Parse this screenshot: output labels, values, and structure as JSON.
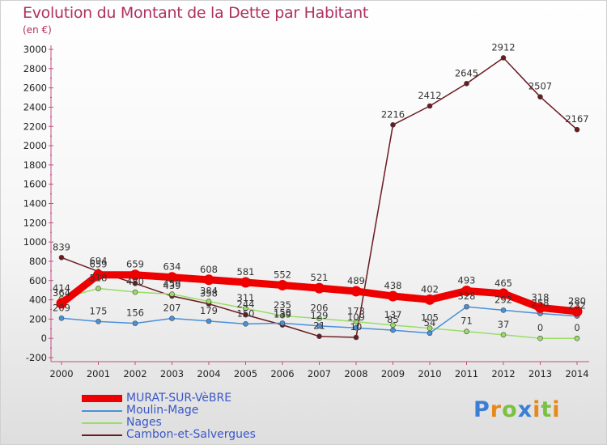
{
  "chart_data": {
    "type": "line",
    "title": "Evolution du Montant de la Dette par Habitant",
    "subtitle": "(en €)",
    "x": [
      "2000",
      "2001",
      "2002",
      "2003",
      "2004",
      "2005",
      "2006",
      "2007",
      "2008",
      "2009",
      "2010",
      "2011",
      "2012",
      "2013",
      "2014"
    ],
    "ylim": [
      -200,
      3000
    ],
    "yticks": [
      -200,
      0,
      200,
      400,
      600,
      800,
      1000,
      1200,
      1400,
      1600,
      1800,
      2000,
      2200,
      2400,
      2600,
      2800,
      3000
    ],
    "grid": false,
    "legend": "bottom-left",
    "series": [
      {
        "name": "MURAT-SUR-VèBRE",
        "color": "#ee0000",
        "values": [
          364,
          659,
          659,
          634,
          608,
          581,
          552,
          521,
          489,
          438,
          402,
          493,
          465,
          318,
          280
        ],
        "labels": [
          "364",
          "659",
          "659",
          "634",
          "608",
          "581",
          "552",
          "521",
          "489",
          "438",
          "402",
          "493",
          "465",
          "318",
          "280"
        ]
      },
      {
        "name": "Moulin-Mage",
        "color": "#4a90d9",
        "values": [
          209,
          175,
          156,
          207,
          179,
          150,
          158,
          129,
          109,
          85,
          54,
          328,
          292,
          258,
          232
        ],
        "labels": [
          "209",
          "175",
          "156",
          "207",
          "179",
          "150",
          "158",
          "129",
          "109",
          "85",
          "54",
          "328",
          "292",
          "258",
          "232"
        ]
      },
      {
        "name": "Nages",
        "color": "#99dd66",
        "values": [
          414,
          518,
          480,
          459,
          384,
          311,
          235,
          206,
          173,
          137,
          105,
          71,
          37,
          0,
          0
        ],
        "labels": [
          "414",
          "518",
          "480",
          "459",
          "384",
          "311",
          "235",
          "206",
          "173",
          "137",
          "105",
          "71",
          "37",
          "0",
          "0"
        ]
      },
      {
        "name": "Cambon-et-Salvergues",
        "color": "#6b1a20",
        "values": [
          839,
          694,
          570,
          439,
          358,
          244,
          139,
          21,
          10,
          2216,
          2412,
          2645,
          2912,
          2507,
          2167
        ],
        "labels": [
          "839",
          "694",
          "",
          "439",
          "358",
          "244",
          "139",
          "21",
          "10",
          "2216",
          "2412",
          "2645",
          "2912",
          "2507",
          "2167"
        ]
      }
    ]
  },
  "logo": {
    "letters": [
      {
        "t": "P",
        "c": "#3a7fd5"
      },
      {
        "t": "r",
        "c": "#e8881a"
      },
      {
        "t": "o",
        "c": "#7ac143"
      },
      {
        "t": "x",
        "c": "#3a7fd5"
      },
      {
        "t": "i",
        "c": "#e8881a"
      },
      {
        "t": "t",
        "c": "#7ac143"
      },
      {
        "t": "i",
        "c": "#e8881a"
      }
    ]
  }
}
